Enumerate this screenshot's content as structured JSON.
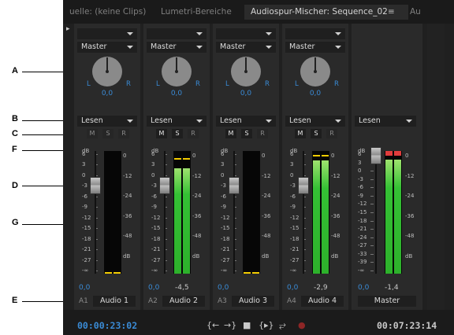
{
  "callouts": [
    "A",
    "B",
    "C",
    "F",
    "D",
    "G",
    "E"
  ],
  "tabs": [
    {
      "label": "uelle: (keine Clips)",
      "active": false
    },
    {
      "label": "Lumetri-Bereiche",
      "active": false
    },
    {
      "label": "Audiospur-Mischer: Sequence_02",
      "active": true
    },
    {
      "label": "Au",
      "active": false
    }
  ],
  "tab_menu_icon": "≡",
  "panel_menu_icon": "▸",
  "strips": [
    {
      "id": "A1",
      "name": "Audio 1",
      "output": "Master",
      "automation": "Lesen",
      "pan_l": "L",
      "pan_r": "R",
      "pan": "0,0",
      "volume": "0,0",
      "peak": "",
      "msr": [
        "M",
        "S",
        "R"
      ],
      "level": 0.0,
      "peak_level": 0.0
    },
    {
      "id": "A2",
      "name": "Audio 2",
      "output": "Master",
      "automation": "Lesen",
      "pan_l": "L",
      "pan_r": "R",
      "pan": "0,0",
      "volume": "0,0",
      "peak": "-4,5",
      "msr": [
        "M",
        "S",
        "R"
      ],
      "level": 0.86,
      "peak_level": 0.94
    },
    {
      "id": "A3",
      "name": "Audio 3",
      "output": "Master",
      "automation": "Lesen",
      "pan_l": "L",
      "pan_r": "R",
      "pan": "0,0",
      "volume": "0,0",
      "peak": "",
      "msr": [
        "M",
        "S",
        "R"
      ],
      "level": 0.0,
      "peak_level": 0.0
    },
    {
      "id": "A4",
      "name": "Audio 4",
      "output": "Master",
      "automation": "Lesen",
      "pan_l": "L",
      "pan_r": "R",
      "pan": "0,0",
      "volume": "0,0",
      "peak": "-2,9",
      "msr": [
        "M",
        "S",
        "R"
      ],
      "level": 0.92,
      "peak_level": 0.97
    }
  ],
  "master": {
    "name": "Master",
    "automation": "Lesen",
    "volume": "0,0",
    "peak": "-1,4",
    "level": 0.93,
    "peak_level": 0.99
  },
  "fader_scale": [
    "dB",
    "6",
    "3",
    "0",
    "-3",
    "-6",
    "-9",
    "-12",
    "-15",
    "-18",
    "-21",
    "-27",
    "-∞"
  ],
  "master_fader_scale": [
    "dB",
    "6",
    "3",
    "0",
    "-3",
    "-6",
    "-9",
    "-12",
    "-15",
    "-18",
    "-21",
    "-24",
    "-27",
    "-33",
    "-39",
    "-∞"
  ],
  "meter_scale": [
    "0",
    "-12",
    "-24",
    "-36",
    "-48",
    "dB"
  ],
  "transport": {
    "current_time": "00:00:23:02",
    "duration": "00:07:23:14",
    "buttons": [
      {
        "name": "go-to-in-point-icon",
        "glyph": "{←"
      },
      {
        "name": "go-to-out-point-icon",
        "glyph": "→}"
      },
      {
        "name": "stop-icon",
        "glyph": "■"
      },
      {
        "name": "play-in-to-out-icon",
        "glyph": "{▸}"
      },
      {
        "name": "loop-icon",
        "glyph": "⥂"
      },
      {
        "name": "record-icon",
        "glyph": "●"
      }
    ]
  },
  "colors": {
    "accent": "#3a8bd6",
    "meter_green": "#34c034",
    "peak_yellow": "#f3cc00",
    "clip_red": "#e03c3c",
    "record": "#8e2626"
  }
}
